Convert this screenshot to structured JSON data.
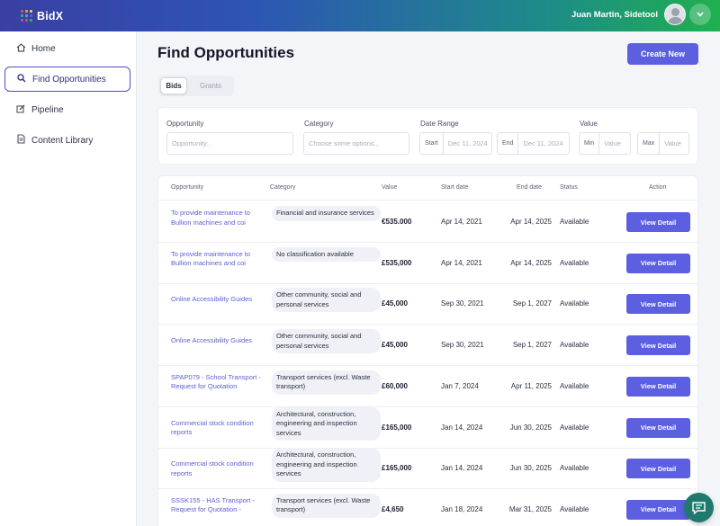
{
  "app": {
    "brand_name": "BidX",
    "brand_colors": [
      "#e7495a",
      "#f29b3d",
      "#f2d43d",
      "#39b54a",
      "#4aa3df",
      "#5b5fe0",
      "#9b59b6",
      "#e7495a",
      "#39b54a"
    ],
    "accent_color": "#5b5fe0"
  },
  "header": {
    "user_name": "Juan Martin, Sidetool",
    "caret_icon": "chevron-down-icon"
  },
  "sidebar": {
    "items": [
      {
        "label": "Home",
        "icon": "home-icon",
        "active": false
      },
      {
        "label": "Find Opportunities",
        "icon": "search-icon",
        "active": true
      },
      {
        "label": "Pipeline",
        "icon": "edit-icon",
        "active": false
      },
      {
        "label": "Content Library",
        "icon": "document-icon",
        "active": false
      }
    ]
  },
  "main": {
    "title": "Find Opportunities",
    "create_button": "Create New",
    "tabs": [
      {
        "label": "Bids",
        "active": true
      },
      {
        "label": "Grants",
        "active": false
      }
    ]
  },
  "filters": {
    "opportunity": {
      "label": "Opportunity",
      "placeholder": "Opportunity..."
    },
    "category": {
      "label": "Category",
      "placeholder": "Choose some options..."
    },
    "date_range": {
      "label": "Date Range",
      "start_tag": "Start",
      "start_value": "Dec 11, 2024",
      "end_tag": "End",
      "end_value": "Dec 11, 2024"
    },
    "value": {
      "label": "Value",
      "min_tag": "Min",
      "min_placeholder": "Value",
      "max_tag": "Max",
      "max_placeholder": "Value"
    }
  },
  "table": {
    "columns": [
      "Opportunity",
      "Category",
      "Value",
      "Start date",
      "End date",
      "Status",
      "Action"
    ],
    "rows": [
      {
        "opportunity": "To provide maintenance to Bullion machines and coi",
        "category": "Financial and insurance services",
        "value": "€535.000",
        "start": "Apr 14, 2021",
        "end": "Apr 14, 2025",
        "status": "Available",
        "action": "View Detail"
      },
      {
        "opportunity": "To provide maintenance to Bullion machines and coi",
        "category": "No classification available",
        "value": "£535,000",
        "start": "Apr 14, 2021",
        "end": "Apr 14, 2025",
        "status": "Available",
        "action": "View Detail"
      },
      {
        "opportunity": "Online Accessibility Guides",
        "category": "Other community, social and personal services",
        "value": "£45,000",
        "start": "Sep 30, 2021",
        "end": "Sep 1, 2027",
        "status": "Available",
        "action": "View Detail"
      },
      {
        "opportunity": "Online Accessibility Guides",
        "category": "Other community, social and personal services",
        "value": "£45,000",
        "start": "Sep 30, 2021",
        "end": "Sep 1, 2027",
        "status": "Available",
        "action": "View Detail"
      },
      {
        "opportunity": "SPAP079 - School Transport - Request for Quotation",
        "category": "Transport services (excl. Waste transport)",
        "value": "£60,000",
        "start": "Jan 7, 2024",
        "end": "Apr 11, 2025",
        "status": "Available",
        "action": "View Detail"
      },
      {
        "opportunity": "Commercial stock condition reports",
        "category": "Architectural, construction, engineering and inspection services",
        "value": "£165,000",
        "start": "Jan 14, 2024",
        "end": "Jun 30, 2025",
        "status": "Available",
        "action": "View Detail"
      },
      {
        "opportunity": "Commercial stock condition reports",
        "category": "Architectural, construction, engineering and inspection services",
        "value": "£165,000",
        "start": "Jan 14, 2024",
        "end": "Jun 30, 2025",
        "status": "Available",
        "action": "View Detail"
      },
      {
        "opportunity": "SSSK155 - HAS Transport - Request for Quotation -",
        "category": "Transport services (excl. Waste transport)",
        "value": "£4,650",
        "start": "Jan 18, 2024",
        "end": "Mar 31, 2025",
        "status": "Available",
        "action": "View Detail"
      }
    ]
  },
  "chat": {
    "icon": "chat-icon",
    "color": "#1f7a6d"
  }
}
